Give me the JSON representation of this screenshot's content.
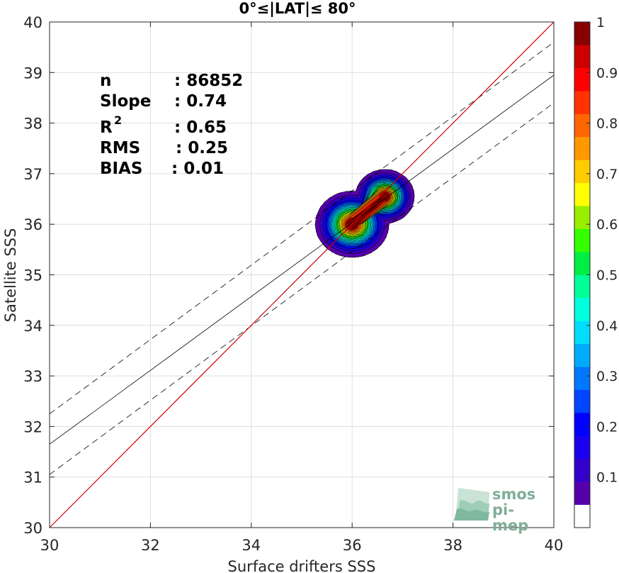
{
  "chart_data": {
    "type": "heatmap",
    "title": "0°≤|LAT|≤ 80°",
    "xlabel": "Surface drifters SSS",
    "ylabel": "Satellite SSS",
    "xlim": [
      30,
      40
    ],
    "ylim": [
      30,
      40
    ],
    "xticks": [
      "30",
      "32",
      "34",
      "36",
      "38",
      "40"
    ],
    "yticks": [
      "30",
      "31",
      "32",
      "33",
      "34",
      "35",
      "36",
      "37",
      "38",
      "39",
      "40"
    ],
    "grid": true,
    "stats": {
      "n_label": "n",
      "n_value": ": 86852",
      "slope_label": "Slope",
      "slope_value": ": 0.74",
      "r2_label": "R",
      "r2_sup": "2",
      "r2_value": ": 0.65",
      "rms_label": "RMS",
      "rms_value": ": 0.25",
      "bias_label": "BIAS",
      "bias_value": ": 0.01"
    },
    "lines": {
      "one_to_one": {
        "points": [
          [
            30,
            30
          ],
          [
            40,
            40
          ]
        ],
        "color": "#cc0000"
      },
      "fit": {
        "points": [
          [
            30,
            31.65
          ],
          [
            40,
            38.95
          ]
        ],
        "color": "#000000"
      },
      "fit_upper": {
        "points": [
          [
            30,
            32.25
          ],
          [
            40,
            39.6
          ]
        ],
        "style": "dashed"
      },
      "fit_lower": {
        "points": [
          [
            30,
            31.05
          ],
          [
            40,
            38.4
          ]
        ],
        "style": "dashed"
      }
    },
    "density": {
      "peaks": [
        {
          "x": 36.0,
          "y": 36.0,
          "amplitude": 1.0,
          "sx": 0.3,
          "sy": 0.27
        },
        {
          "x": 36.65,
          "y": 36.55,
          "amplitude": 1.0,
          "sx": 0.24,
          "sy": 0.22
        }
      ],
      "envelope_center": {
        "x": 36.15,
        "y": 36.2
      },
      "levels": [
        0.05,
        0.1,
        0.15,
        0.2,
        0.25,
        0.3,
        0.35,
        0.4,
        0.45,
        0.5,
        0.55,
        0.6,
        0.65,
        0.7,
        0.75,
        0.8,
        0.85,
        0.9,
        0.95
      ]
    },
    "colorbar": {
      "ticks": [
        "0.1",
        "0.2",
        "0.3",
        "0.4",
        "0.5",
        "0.6",
        "0.7",
        "0.8",
        "0.9",
        "1"
      ],
      "tick_values": [
        0.1,
        0.2,
        0.3,
        0.4,
        0.5,
        0.6,
        0.7,
        0.8,
        0.9,
        1.0
      ],
      "range": [
        0,
        1
      ],
      "colors": [
        "#ffffff",
        "#5500aa",
        "#3300cc",
        "#1a00ee",
        "#0000ff",
        "#0044ff",
        "#0077ff",
        "#00aaff",
        "#00ddff",
        "#00ffdd",
        "#00ff99",
        "#00ee44",
        "#33ff00",
        "#99ee00",
        "#ffff00",
        "#ffcc00",
        "#ff9900",
        "#ff6600",
        "#ff3300",
        "#ff0000",
        "#cc0000",
        "#880000"
      ]
    }
  },
  "logo": {
    "line1": "smos",
    "line2": "pi-mep"
  }
}
